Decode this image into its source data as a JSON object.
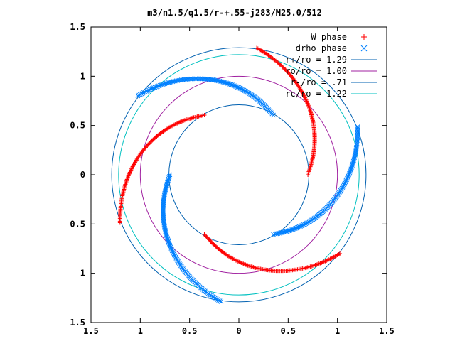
{
  "chart_data": {
    "type": "scatter",
    "title": "m3/n1.5/q1.5/r-+.55-j283/M25.0/512",
    "xlabel": "",
    "ylabel": "",
    "xlim": [
      -1.5,
      1.5
    ],
    "ylim": [
      -1.5,
      1.5
    ],
    "x_ticks": [
      -1.5,
      -1,
      -0.5,
      0,
      0.5,
      1,
      1.5
    ],
    "x_tick_labels": [
      "1.5",
      "1",
      "0.5",
      "0",
      "0.5",
      "1",
      "1.5"
    ],
    "y_ticks": [
      1.5,
      1,
      0.5,
      0,
      -0.5,
      -1,
      -1.5
    ],
    "y_tick_labels": [
      "1.5",
      "1",
      "0.5",
      "0",
      "0.5",
      "1",
      "1.5"
    ],
    "grid": false,
    "legend_position": "top-right",
    "series": [
      {
        "name": "W phase",
        "marker": "+",
        "color": "#ff0000",
        "arms": [
          {
            "r_start": 0.7,
            "r_end": 1.3,
            "theta_start_deg": 120,
            "theta_span_deg": 82,
            "offset_deg": 0
          },
          {
            "r_start": 0.7,
            "r_end": 1.3,
            "theta_start_deg": 240,
            "theta_span_deg": 82,
            "offset_deg": 0
          },
          {
            "r_start": 0.7,
            "r_end": 1.3,
            "theta_start_deg": 0,
            "theta_span_deg": 82,
            "offset_deg": 0
          }
        ]
      },
      {
        "name": "drho phase",
        "marker": "x",
        "color": "#0080ff",
        "arms": [
          {
            "r_start": 0.7,
            "r_end": 1.3,
            "theta_start_deg": 60,
            "theta_span_deg": 82,
            "offset_deg": 0
          },
          {
            "r_start": 0.7,
            "r_end": 1.3,
            "theta_start_deg": 180,
            "theta_span_deg": 82,
            "offset_deg": 0
          },
          {
            "r_start": 0.7,
            "r_end": 1.3,
            "theta_start_deg": 300,
            "theta_span_deg": 82,
            "offset_deg": 0
          }
        ]
      }
    ],
    "circles": [
      {
        "name": "r+/ro = 1.29",
        "r": 1.29,
        "color": "#0060b0"
      },
      {
        "name": "ro/ro = 1.00",
        "r": 1.0,
        "color": "#a020a0"
      },
      {
        "name": "r-/ro = .71",
        "r": 0.71,
        "color": "#0060b0"
      },
      {
        "name": "rc/ro = 1.22",
        "r": 1.22,
        "color": "#00c0c0"
      }
    ]
  }
}
